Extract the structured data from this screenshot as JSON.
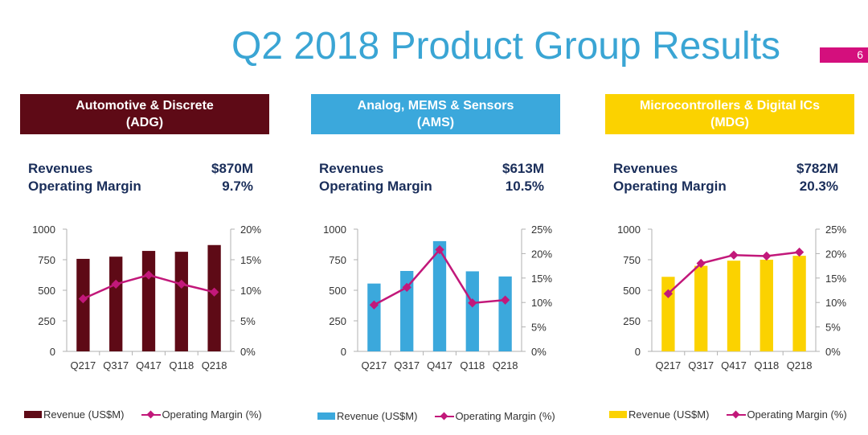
{
  "slide": {
    "title": "Q2 2018 Product Group Results",
    "page_number": "6",
    "accent_color": "#3aa5d4",
    "badge_color": "#d40f7d"
  },
  "panels": [
    {
      "id": "adg",
      "header_line1": "Automotive & Discrete",
      "header_line2": "(ADG)",
      "header_color": "#5e0a16",
      "header_text_color": "#ffffff",
      "kpi": {
        "revenue_label": "Revenues",
        "revenue_value": "$870M",
        "margin_label": "Operating Margin",
        "margin_value": "9.7%"
      },
      "legend": {
        "bar_label": "Revenue (US$M)",
        "line_label": "Operating Margin (%)"
      }
    },
    {
      "id": "ams",
      "header_line1": "Analog, MEMS & Sensors",
      "header_line2": "(AMS)",
      "header_color": "#3ba8dc",
      "header_text_color": "#ffffff",
      "kpi": {
        "revenue_label": "Revenues",
        "revenue_value": "$613M",
        "margin_label": "Operating Margin",
        "margin_value": "10.5%"
      },
      "legend": {
        "bar_label": "Revenue (US$M)",
        "line_label": "Operating Margin (%)"
      }
    },
    {
      "id": "mdg",
      "header_line1": "Microcontrollers & Digital ICs",
      "header_line2": "(MDG)",
      "header_color": "#fbd200",
      "header_text_color": "#ffffff",
      "kpi": {
        "revenue_label": "Revenues",
        "revenue_value": "$782M",
        "margin_label": "Operating Margin",
        "margin_value": "20.3%"
      },
      "legend": {
        "bar_label": "Revenue (US$M)",
        "line_label": "Operating Margin (%)"
      }
    }
  ],
  "chart_data": [
    {
      "type": "bar",
      "title": "Automotive & Discrete (ADG)",
      "categories": [
        "Q217",
        "Q317",
        "Q417",
        "Q118",
        "Q218"
      ],
      "series": [
        {
          "name": "Revenue (US$M)",
          "type": "bar",
          "axis": "left",
          "color": "#5e0a16",
          "values": [
            757,
            775,
            822,
            815,
            870
          ]
        },
        {
          "name": "Operating Margin (%)",
          "type": "line",
          "axis": "right",
          "color": "#c2187a",
          "values": [
            8.6,
            11.0,
            12.5,
            11.0,
            9.7
          ]
        }
      ],
      "y_left": {
        "min": 0,
        "max": 1000,
        "ticks": [
          0,
          250,
          500,
          750,
          1000
        ],
        "tick_labels": [
          "0",
          "250",
          "500",
          "750",
          "1000"
        ]
      },
      "y_right": {
        "min": 0,
        "max": 20,
        "ticks": [
          0,
          5,
          10,
          15,
          20
        ],
        "tick_labels": [
          "0%",
          "5%",
          "10%",
          "15%",
          "20%"
        ]
      },
      "xlabel": "",
      "ylabel": "",
      "grid": false,
      "legend_position": "bottom"
    },
    {
      "type": "bar",
      "title": "Analog, MEMS & Sensors (AMS)",
      "categories": [
        "Q217",
        "Q317",
        "Q417",
        "Q118",
        "Q218"
      ],
      "series": [
        {
          "name": "Revenue (US$M)",
          "type": "bar",
          "axis": "left",
          "color": "#3ba8dc",
          "values": [
            555,
            658,
            902,
            655,
            613
          ]
        },
        {
          "name": "Operating Margin (%)",
          "type": "line",
          "axis": "right",
          "color": "#c2187a",
          "values": [
            9.5,
            13.1,
            20.8,
            9.9,
            10.5
          ]
        }
      ],
      "y_left": {
        "min": 0,
        "max": 1000,
        "ticks": [
          0,
          250,
          500,
          750,
          1000
        ],
        "tick_labels": [
          "0",
          "250",
          "500",
          "750",
          "1000"
        ]
      },
      "y_right": {
        "min": 0,
        "max": 25,
        "ticks": [
          0,
          5,
          10,
          15,
          20,
          25
        ],
        "tick_labels": [
          "0%",
          "5%",
          "10%",
          "15%",
          "20%",
          "25%"
        ]
      },
      "xlabel": "",
      "ylabel": "",
      "grid": false,
      "legend_position": "bottom"
    },
    {
      "type": "bar",
      "title": "Microcontrollers & Digital ICs (MDG)",
      "categories": [
        "Q217",
        "Q317",
        "Q417",
        "Q118",
        "Q218"
      ],
      "series": [
        {
          "name": "Revenue (US$M)",
          "type": "bar",
          "axis": "left",
          "color": "#fbd200",
          "values": [
            610,
            700,
            742,
            750,
            782
          ]
        },
        {
          "name": "Operating Margin (%)",
          "type": "line",
          "axis": "right",
          "color": "#c2187a",
          "values": [
            11.8,
            18.0,
            19.7,
            19.5,
            20.3
          ]
        }
      ],
      "y_left": {
        "min": 0,
        "max": 1000,
        "ticks": [
          0,
          250,
          500,
          750,
          1000
        ],
        "tick_labels": [
          "0",
          "250",
          "500",
          "750",
          "1000"
        ]
      },
      "y_right": {
        "min": 0,
        "max": 25,
        "ticks": [
          0,
          5,
          10,
          15,
          20,
          25
        ],
        "tick_labels": [
          "0%",
          "5%",
          "10%",
          "15%",
          "20%",
          "25%"
        ]
      },
      "xlabel": "",
      "ylabel": "",
      "grid": false,
      "legend_position": "bottom"
    }
  ]
}
